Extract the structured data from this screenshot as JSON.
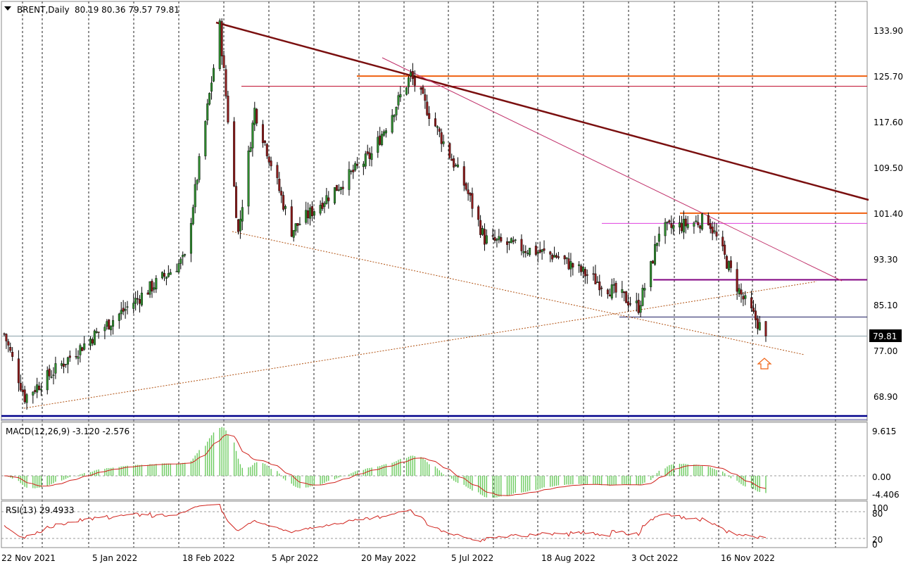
{
  "header": {
    "symbol": "BRENT,Daily",
    "ohlc": "80.19 80.36 79.57 79.81",
    "macd": "MACD(12,26,9) -3.120 -2.576",
    "rsi": "RSI(13) 29.4933"
  },
  "colors": {
    "bull_candle": "#2e8b2e",
    "bear_candle": "#8b1a1a",
    "macd_hist": "#6ccb5f",
    "macd_signal": "#d0201a",
    "rsi_line": "#d0201a",
    "main_trendline": "#7a0f0f",
    "resistance_orange": "#f06010",
    "magenta_level": "#e040e0",
    "purple_level": "#800080",
    "bottom_band": "#00008b"
  },
  "chart_data": [
    {
      "type": "candlestick",
      "title": "BRENT,Daily",
      "last_price_label": "79.81",
      "ylim": [
        64.2,
        139.0
      ],
      "y_ticks": [
        "133.90",
        "125.70",
        "117.60",
        "109.50",
        "101.40",
        "93.30",
        "85.10",
        "77.00",
        "68.90"
      ],
      "x_ticks": [
        "22 Nov 2021",
        "5 Jan 2022",
        "18 Feb 2022",
        "5 Apr 2022",
        "20 May 2022",
        "5 Jul 2022",
        "18 Aug 2022",
        "3 Oct 2022",
        "16 Nov 2022"
      ],
      "grid": "vertical dashed",
      "key_points": [
        {
          "date": "22 Nov 2021",
          "close": 80.2
        },
        {
          "date": "2 Dec 2021",
          "close": 69.0
        },
        {
          "date": "5 Jan 2022",
          "close": 80.0
        },
        {
          "date": "18 Feb 2022",
          "close": 93.5
        },
        {
          "date": "7 Mar 2022",
          "close": 134.7
        },
        {
          "date": "16 Mar 2022",
          "close": 98.0
        },
        {
          "date": "24 Mar 2022",
          "close": 120.0
        },
        {
          "date": "11 Apr 2022",
          "close": 98.5
        },
        {
          "date": "20 May 2022",
          "close": 112.0
        },
        {
          "date": "8 Jun 2022",
          "close": 126.0
        },
        {
          "date": "5 Jul 2022",
          "close": 106.0
        },
        {
          "date": "14 Jul 2022",
          "close": 97.0
        },
        {
          "date": "18 Aug 2022",
          "close": 94.0
        },
        {
          "date": "27 Sep 2022",
          "close": 85.0
        },
        {
          "date": "3 Oct 2022",
          "close": 92.0
        },
        {
          "date": "7 Oct 2022",
          "close": 98.5
        },
        {
          "date": "31 Oct 2022",
          "close": 100.5
        },
        {
          "date": "16 Nov 2022",
          "close": 87.0
        },
        {
          "date": "28 Nov 2022",
          "close": 79.81
        }
      ],
      "horizontal_levels": [
        125.9,
        124.1,
        101.6,
        99.8,
        89.8,
        83.2
      ],
      "current_price": 79.81
    },
    {
      "type": "line",
      "title": "MACD(12,26,9) -3.120 -2.576",
      "y_ticks": [
        "9.615",
        "0.00",
        "-4.406"
      ],
      "values": {
        "macd": -3.12,
        "signal": -2.576
      }
    },
    {
      "type": "line",
      "title": "RSI(13) 29.4933",
      "y_ticks": [
        "100",
        "80",
        "20",
        "0"
      ],
      "values": {
        "rsi": 29.4933
      }
    }
  ]
}
